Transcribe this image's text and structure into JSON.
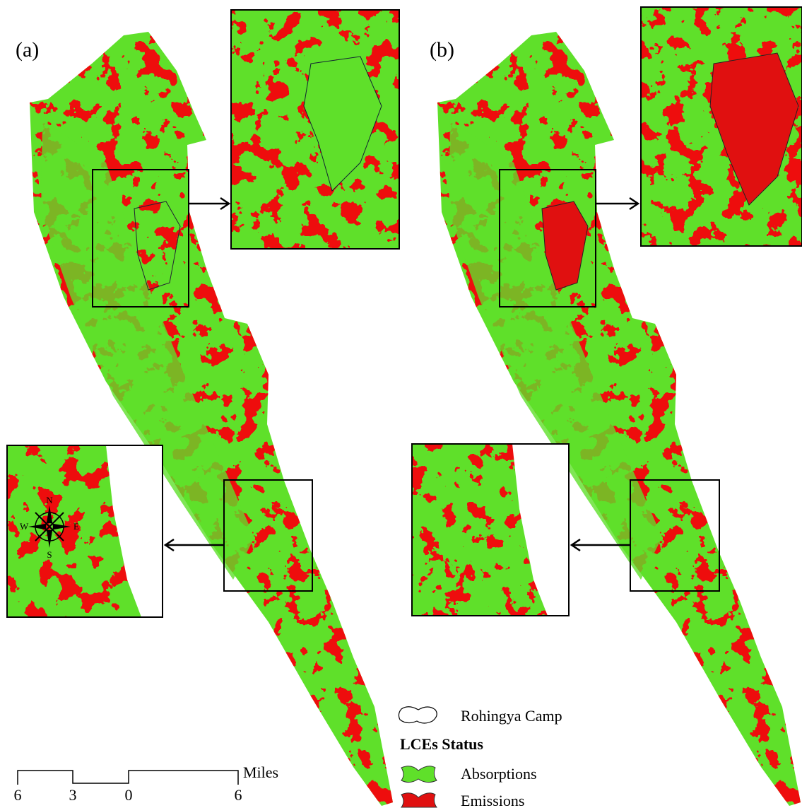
{
  "panels": [
    {
      "label": "(a)"
    },
    {
      "label": "(b)"
    }
  ],
  "compass": {
    "north": "N",
    "south": "S",
    "east": "E",
    "west": "W"
  },
  "scale_bar": {
    "labels": [
      "6",
      "3",
      "0",
      "6"
    ],
    "unit": "Miles"
  },
  "legend": {
    "camp": "Rohingya Camp",
    "title": "LCEs Status",
    "items": [
      "Absorptions",
      "Emissions"
    ]
  }
}
